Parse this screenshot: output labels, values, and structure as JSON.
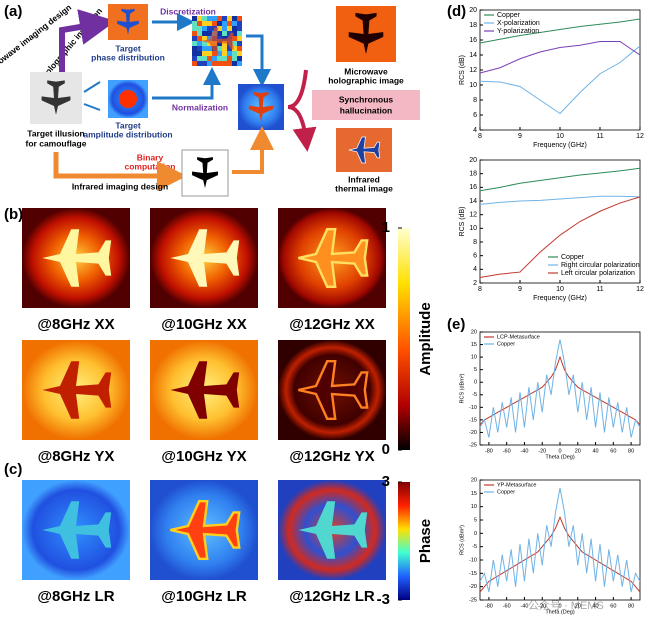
{
  "panels": {
    "a": "(a)",
    "b": "(b)",
    "c": "(c)",
    "d": "(d)",
    "e": "(e)"
  },
  "diagram": {
    "microwave_design": "Microwave imaging design",
    "holographic_inversion": "Holographic inversion",
    "phase": [
      "Target",
      "phase distribution"
    ],
    "discretization": "Discretization",
    "normalization": "Normalization",
    "amplitude": [
      "Target",
      "amplitude distribution"
    ],
    "target": [
      "Target illusion",
      "for camouflage"
    ],
    "binary": [
      "Binary",
      "computation"
    ],
    "infrared_design": "Infrared imaging design",
    "microwave_image": [
      "Microwave",
      "holographic image"
    ],
    "synchronous": [
      "Synchronous",
      "hallucination"
    ],
    "thermal": [
      "Infrared",
      "thermal image"
    ]
  },
  "maps": {
    "labels": [
      [
        "@8GHz XX",
        "@10GHz XX",
        "@12GHz XX"
      ],
      [
        "@8GHz YX",
        "@10GHz YX",
        "@12GHz YX"
      ],
      [
        "@8GHz LR",
        "@10GHz LR",
        "@12GHz LR"
      ]
    ],
    "amplitude": {
      "title": "Amplitude",
      "clim": [
        0,
        1
      ],
      "ticks": [
        0,
        1
      ]
    },
    "phase": {
      "title": "Phase",
      "clim": [
        -3,
        3
      ],
      "ticks": [
        -3,
        3
      ]
    }
  },
  "chart_data": [
    {
      "type": "line",
      "xlabel": "Frequency (GHz)",
      "ylabel": "RCS (dB)",
      "x": [
        8,
        8.5,
        9,
        9.5,
        10,
        10.5,
        11,
        11.5,
        12
      ],
      "xlim": [
        8,
        12
      ],
      "xticks": [
        8,
        9,
        10,
        11,
        12
      ],
      "ylim": [
        4,
        20
      ],
      "yticks": [
        4,
        6,
        8,
        10,
        12,
        14,
        16,
        18,
        20
      ],
      "legend": "upper left",
      "series": [
        {
          "name": "Copper",
          "color": "#2e8b57",
          "values": [
            15.6,
            16.1,
            16.6,
            17.0,
            17.4,
            17.8,
            18.1,
            18.4,
            18.8
          ]
        },
        {
          "name": "X-polarization",
          "color": "#6fb3e6",
          "values": [
            10.5,
            10.4,
            9.8,
            8.0,
            6.2,
            9.0,
            11.5,
            13.0,
            15.2
          ]
        },
        {
          "name": "Y-polarization",
          "color": "#7b3fb5",
          "values": [
            11.6,
            12.3,
            13.5,
            14.4,
            15.0,
            15.3,
            15.8,
            15.8,
            14.0
          ]
        }
      ]
    },
    {
      "type": "line",
      "xlabel": "Frequency (GHz)",
      "ylabel": "RCS (dB)",
      "x": [
        8,
        8.5,
        9,
        9.5,
        10,
        10.5,
        11,
        11.5,
        12
      ],
      "xlim": [
        8,
        12
      ],
      "xticks": [
        8,
        9,
        10,
        11,
        12
      ],
      "ylim": [
        2,
        20
      ],
      "yticks": [
        2,
        4,
        6,
        8,
        10,
        12,
        14,
        16,
        18,
        20
      ],
      "legend": "lower right",
      "series": [
        {
          "name": "Copper",
          "color": "#2e8b57",
          "values": [
            15.5,
            16.0,
            16.6,
            17.0,
            17.4,
            17.8,
            18.1,
            18.4,
            18.8
          ]
        },
        {
          "name": "Right circular polarization",
          "color": "#6fb3e6",
          "values": [
            13.5,
            13.8,
            14.0,
            14.1,
            14.3,
            14.5,
            14.7,
            14.7,
            14.6
          ]
        },
        {
          "name": "Left circular polarization",
          "color": "#c0392b",
          "values": [
            2.8,
            3.3,
            3.6,
            6.5,
            9.0,
            11.0,
            12.5,
            13.7,
            14.6
          ]
        }
      ]
    },
    {
      "type": "line",
      "xlabel": "Theta (Deg)",
      "ylabel": "RCS (dBm²)",
      "x": [
        -90,
        -85,
        -80,
        -75,
        -70,
        -65,
        -60,
        -55,
        -50,
        -45,
        -40,
        -35,
        -30,
        -25,
        -20,
        -15,
        -10,
        -5,
        0,
        5,
        10,
        15,
        20,
        25,
        30,
        35,
        40,
        45,
        50,
        55,
        60,
        65,
        70,
        75,
        80,
        85,
        90
      ],
      "xlim": [
        -90,
        90
      ],
      "xticks": [
        -80,
        -60,
        -40,
        -20,
        0,
        20,
        40,
        60,
        80
      ],
      "ylim": [
        -25,
        20
      ],
      "yticks": [
        -25,
        -20,
        -15,
        -10,
        -5,
        0,
        5,
        10,
        15,
        20
      ],
      "legend": "upper left",
      "series": [
        {
          "name": "LCP-Metasurface",
          "color": "#c0392b",
          "values": [
            -17,
            -15,
            -14,
            -13,
            -12,
            -11,
            -10,
            -9,
            -8,
            -7,
            -6,
            -5,
            -4,
            -3,
            -2,
            0,
            2,
            5,
            10,
            5,
            2,
            0,
            -2,
            -3,
            -4,
            -5,
            -6,
            -7,
            -8,
            -9,
            -10,
            -11,
            -12,
            -13,
            -14,
            -15,
            -17
          ]
        },
        {
          "name": "Copper",
          "color": "#6fb3e6",
          "values": [
            -18,
            -15,
            -22,
            -10,
            -20,
            -8,
            -18,
            -6,
            -20,
            -4,
            -18,
            -2,
            -15,
            0,
            -12,
            3,
            -5,
            8,
            17,
            8,
            -5,
            3,
            -12,
            0,
            -15,
            -2,
            -18,
            -4,
            -20,
            -6,
            -18,
            -8,
            -20,
            -10,
            -22,
            -15,
            -18
          ]
        }
      ]
    },
    {
      "type": "line",
      "xlabel": "Theta (Deg)",
      "ylabel": "RCS (dBm²)",
      "x": [
        -90,
        -85,
        -80,
        -75,
        -70,
        -65,
        -60,
        -55,
        -50,
        -45,
        -40,
        -35,
        -30,
        -25,
        -20,
        -15,
        -10,
        -5,
        0,
        5,
        10,
        15,
        20,
        25,
        30,
        35,
        40,
        45,
        50,
        55,
        60,
        65,
        70,
        75,
        80,
        85,
        90
      ],
      "xlim": [
        -90,
        90
      ],
      "xticks": [
        -80,
        -60,
        -40,
        -20,
        0,
        20,
        40,
        60,
        80
      ],
      "ylim": [
        -25,
        20
      ],
      "yticks": [
        -25,
        -20,
        -15,
        -10,
        -5,
        0,
        5,
        10,
        15,
        20
      ],
      "legend": "upper left",
      "series": [
        {
          "name": "YP-Metasurface",
          "color": "#c0392b",
          "values": [
            -22,
            -20,
            -18,
            -17,
            -16,
            -15,
            -14,
            -13,
            -12,
            -11,
            -10,
            -9,
            -8,
            -7,
            -5,
            -3,
            -1,
            2,
            6,
            2,
            -1,
            -3,
            -5,
            -7,
            -8,
            -9,
            -10,
            -11,
            -12,
            -13,
            -14,
            -15,
            -16,
            -17,
            -18,
            -20,
            -22
          ]
        },
        {
          "name": "Copper",
          "color": "#6fb3e6",
          "values": [
            -18,
            -15,
            -22,
            -10,
            -20,
            -8,
            -18,
            -6,
            -20,
            -4,
            -18,
            -2,
            -15,
            0,
            -12,
            3,
            -5,
            8,
            17,
            8,
            -5,
            3,
            -12,
            0,
            -15,
            -2,
            -18,
            -4,
            -20,
            -6,
            -18,
            -8,
            -20,
            -10,
            -22,
            -15,
            -18
          ]
        }
      ]
    }
  ],
  "watermark": "公众号 · MEMS"
}
